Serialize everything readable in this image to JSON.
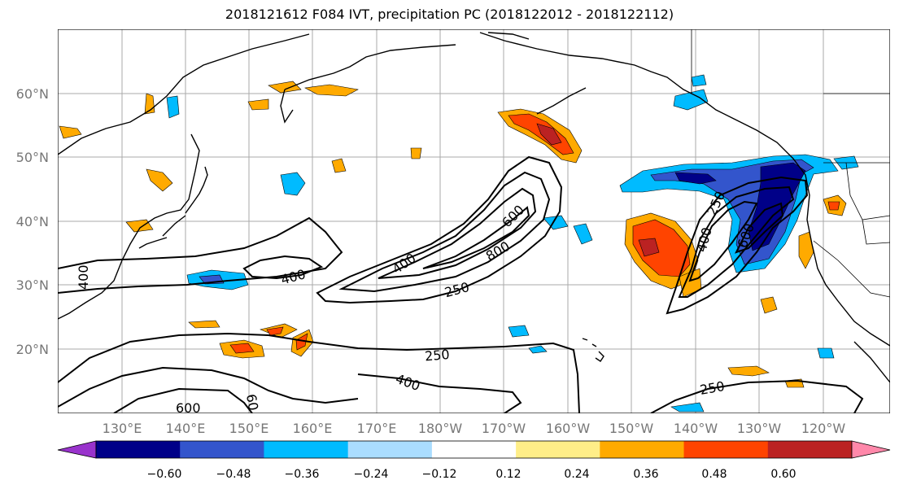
{
  "title": "2018121612 F084 IVT, precipitation PC (2018122012 - 2018122112)",
  "lat_labels": [
    "60°N",
    "50°N",
    "40°N",
    "30°N",
    "20°N"
  ],
  "lon_labels": [
    "130°E",
    "140°E",
    "150°E",
    "160°E",
    "170°E",
    "180°W",
    "170°W",
    "160°W",
    "150°W",
    "140°W",
    "130°W",
    "120°W"
  ],
  "colorbar": {
    "colors": [
      "#9933cc",
      "#000088",
      "#3355cc",
      "#00bbff",
      "#aaddff",
      "#ffffff",
      "#ffee88",
      "#ffaa00",
      "#ff4400",
      "#bb2222",
      "#ff88aa"
    ],
    "ticks": [
      "−0.60",
      "−0.48",
      "−0.36",
      "−0.24",
      "−0.12",
      "0.12",
      "0.24",
      "0.36",
      "0.48",
      "0.60"
    ]
  },
  "contour_labels": [
    "400",
    "400",
    "400",
    "600",
    "800",
    "250",
    "250",
    "400",
    "600",
    "60",
    "250",
    "400",
    "600",
    "250"
  ],
  "colors": {
    "gridline": "#aaaaaa",
    "tick_label": "#777777",
    "coast": "#000000"
  }
}
